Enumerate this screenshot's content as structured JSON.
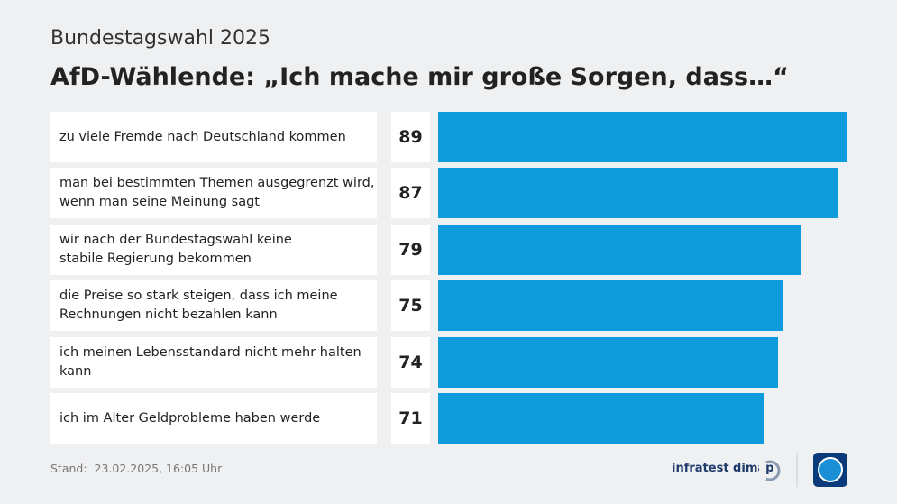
{
  "chart_data": {
    "type": "bar",
    "orientation": "horizontal",
    "supertitle": "Bundestagswahl 2025",
    "title": "AfD-Wählende: „Ich mache mir große Sorgen, dass…“",
    "categories": [
      "zu viele Fremde nach Deutschland kommen",
      "man bei bestimmten Themen ausgegrenzt wird,\nwenn man seine Meinung sagt",
      "wir nach der Bundestagswahl keine\nstabile Regierung bekommen",
      "die Preise so stark steigen, dass ich meine\nRechnungen nicht bezahlen kann",
      "ich meinen Lebensstandard nicht mehr halten kann",
      "ich im Alter Geldprobleme haben werde"
    ],
    "values": [
      89,
      87,
      79,
      75,
      74,
      71
    ],
    "color": "#0d9bdb",
    "footnote": "Stand:  23.02.2025, 16:05 Uhr",
    "source": "infratest dimap"
  }
}
